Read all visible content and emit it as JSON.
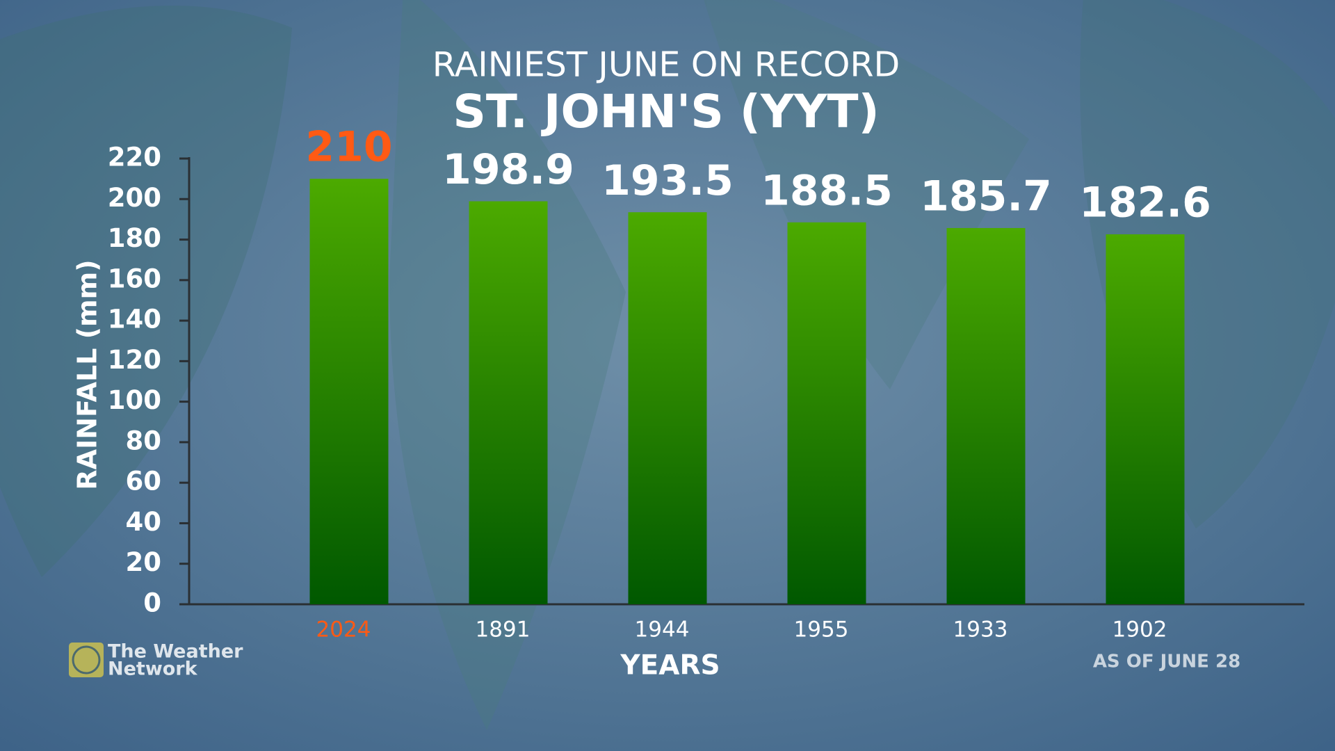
{
  "chart_data": {
    "type": "bar",
    "title": "RAINIEST JUNE ON RECORD",
    "subtitle": "ST. JOHN'S (YYT)",
    "y_label": "RAINFALL (mm)",
    "x_label": "YEARS",
    "note": "AS OF JUNE 28",
    "categories": [
      "2024",
      "1891",
      "1944",
      "1955",
      "1933",
      "1902"
    ],
    "values": [
      210,
      198.9,
      193.5,
      188.5,
      185.7,
      182.6
    ],
    "gradient": [
      "#4caa00",
      "#005800"
    ],
    "label_colors": [
      "#ff5a14",
      "#ffffff",
      "#ffffff",
      "#ffffff",
      "#ffffff",
      "#ffffff"
    ],
    "ylim": [
      0,
      220
    ],
    "yticks": [
      0,
      20,
      40,
      60,
      80,
      100,
      120,
      140,
      160,
      180,
      200,
      220
    ],
    "grid": false
  },
  "logo": [
    "The Weather",
    "Network"
  ]
}
